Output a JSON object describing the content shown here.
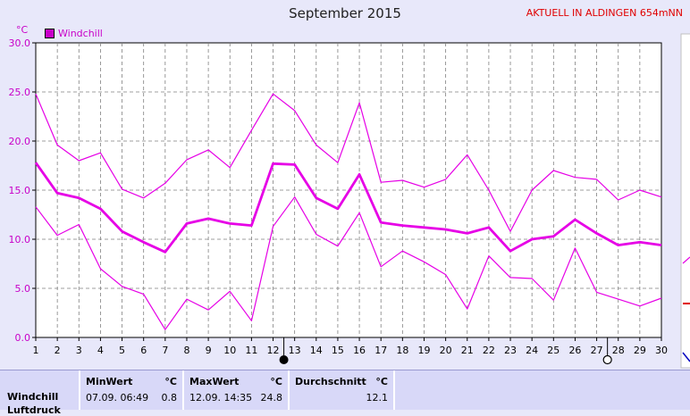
{
  "header": {
    "title": "September 2015",
    "location": "AKTUELL IN ALDINGEN 654mNN"
  },
  "chart_data": {
    "type": "line",
    "title": "September 2015",
    "ylabel": "°C",
    "ylim": [
      0,
      30
    ],
    "yticks": [
      "0.0",
      "5.0",
      "10.0",
      "15.0",
      "20.0",
      "25.0",
      "30.0"
    ],
    "x": [
      1,
      2,
      3,
      4,
      5,
      6,
      7,
      8,
      9,
      10,
      11,
      12,
      13,
      14,
      15,
      16,
      17,
      18,
      19,
      20,
      21,
      22,
      23,
      24,
      25,
      26,
      27,
      28,
      29,
      30
    ],
    "legend": "Windchill",
    "series": [
      {
        "name": "Windchill",
        "role": "max",
        "values": [
          24.8,
          19.6,
          18.0,
          18.8,
          15.1,
          14.2,
          15.7,
          18.1,
          19.1,
          17.3,
          21.1,
          24.8,
          23.1,
          19.6,
          17.8,
          23.9,
          15.8,
          16.0,
          15.3,
          16.1,
          18.6,
          15.0,
          10.8,
          15.0,
          17.0,
          16.3,
          16.1,
          14.0,
          15.0,
          14.3
        ]
      },
      {
        "name": "Windchill",
        "role": "avg",
        "values": [
          17.8,
          14.7,
          14.2,
          13.1,
          10.8,
          9.7,
          8.7,
          11.6,
          12.1,
          11.6,
          11.4,
          17.7,
          17.6,
          14.2,
          13.1,
          16.6,
          11.7,
          11.4,
          11.2,
          11.0,
          10.6,
          11.2,
          8.8,
          10.0,
          10.3,
          12.0,
          10.6,
          9.4,
          9.7,
          9.4
        ]
      },
      {
        "name": "Windchill",
        "role": "min",
        "values": [
          13.3,
          10.4,
          11.5,
          7.0,
          5.2,
          4.4,
          0.8,
          3.9,
          2.8,
          4.7,
          1.7,
          11.3,
          14.3,
          10.5,
          9.3,
          12.7,
          7.2,
          8.8,
          7.7,
          6.4,
          2.9,
          8.3,
          6.1,
          6.0,
          3.8,
          9.1,
          4.6,
          3.9,
          3.2,
          4.0
        ]
      }
    ],
    "markers": {
      "filled_day": 13,
      "open_day": 28
    },
    "grid": true,
    "legend_position": "top-left"
  },
  "stats": {
    "row_label": "Windchill",
    "row_label_2": "Luftdruck",
    "min_header": "MinWert",
    "min_unit": "°C",
    "min_datetime": "07.09.  06:49",
    "min_value": "0.8",
    "max_header": "MaxWert",
    "max_unit": "°C",
    "max_datetime": "12.09.  14:35",
    "max_value": "24.8",
    "avg_header": "Durchschnitt",
    "avg_unit": "°C",
    "avg_value": "12.1"
  },
  "colors": {
    "line": "#e600e6",
    "axis_text": "#c800c8",
    "grid": "#808080",
    "plot_bg": "#ffffff",
    "page_bg": "#e8e8fa"
  }
}
